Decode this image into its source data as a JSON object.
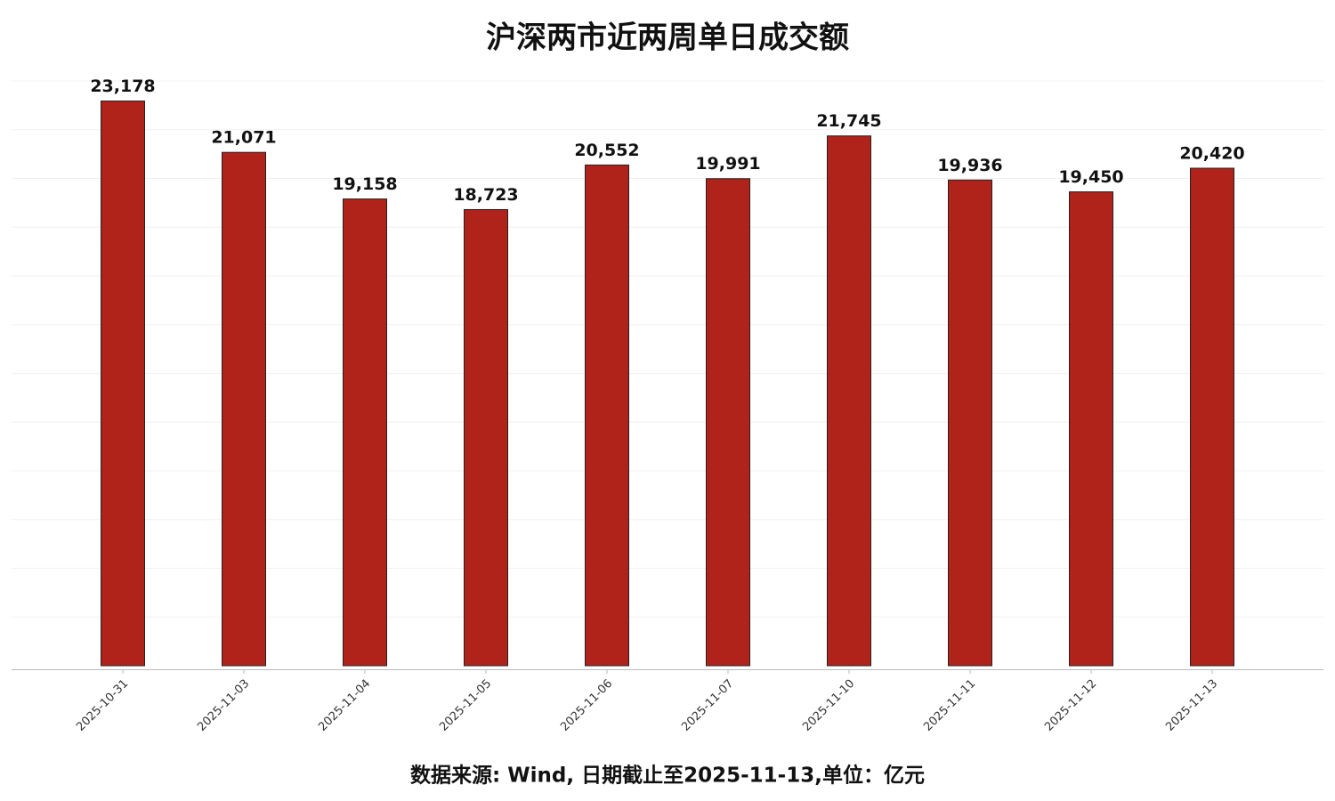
{
  "chart_data": {
    "type": "bar",
    "title": "沪深两市近两周单日成交额",
    "footnote": "数据来源: Wind, 日期截止至2025-11-13,单位：亿元",
    "categories": [
      "2025-10-31",
      "2025-11-03",
      "2025-11-04",
      "2025-11-05",
      "2025-11-06",
      "2025-11-07",
      "2025-11-10",
      "2025-11-11",
      "2025-11-12",
      "2025-11-13"
    ],
    "values": [
      23178,
      21071,
      19158,
      18723,
      20552,
      19991,
      21745,
      19936,
      19450,
      20420
    ],
    "value_labels": [
      "23,178",
      "21,071",
      "19,158",
      "18,723",
      "20,552",
      "19,991",
      "21,745",
      "19,936",
      "19,450",
      "20,420"
    ],
    "color": "#b0231a",
    "ylim": [
      0,
      24000
    ],
    "yticks": [
      2000,
      4000,
      6000,
      8000,
      10000,
      12000,
      14000,
      16000,
      18000,
      20000,
      22000,
      24000
    ],
    "grid": true
  }
}
